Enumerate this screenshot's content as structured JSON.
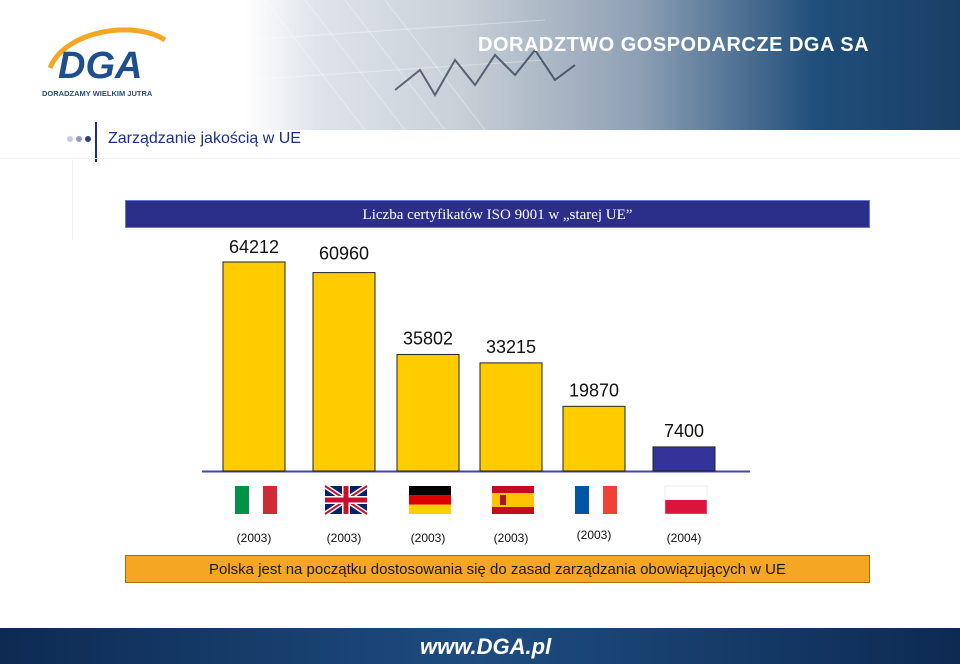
{
  "header": {
    "logo_text": "DGA",
    "logo_tagline": "DORADZAMY WIELKIM JUTRA",
    "brand": "DORADZTWO GOSPODARCZE DGA SA"
  },
  "section_title": "Zarządzanie jakością w UE",
  "footer": {
    "note": "Polska jest na początku dostosowania się do zasad zarządzania obowiązujących w UE",
    "website": "www.DGA.pl"
  },
  "colors": {
    "bar_primary": "#ffcc00",
    "bar_highlight": "#333399",
    "title_bar": "#2b2f8a",
    "footer_bar": "#f5a623"
  },
  "chart_data": {
    "type": "bar",
    "title": "Liczba certyfikatów ISO 9001 w „starej UE”",
    "categories": [
      "Italy",
      "United Kingdom",
      "Germany",
      "Spain",
      "France",
      "Poland"
    ],
    "flags": [
      "flag-italy",
      "flag-uk",
      "flag-germany",
      "flag-spain",
      "flag-france",
      "flag-poland"
    ],
    "values": [
      64212,
      60960,
      35802,
      33215,
      19870,
      7400
    ],
    "value_labels": [
      "64212",
      "60960",
      "35802",
      "33215",
      "19870",
      "7400"
    ],
    "years": [
      "(2003)",
      "(2003)",
      "(2003)",
      "(2003)",
      "(2003)",
      "(2004)"
    ],
    "highlight_index": 5,
    "ylim": [
      0,
      64212
    ],
    "grid": false,
    "legend": "none"
  }
}
